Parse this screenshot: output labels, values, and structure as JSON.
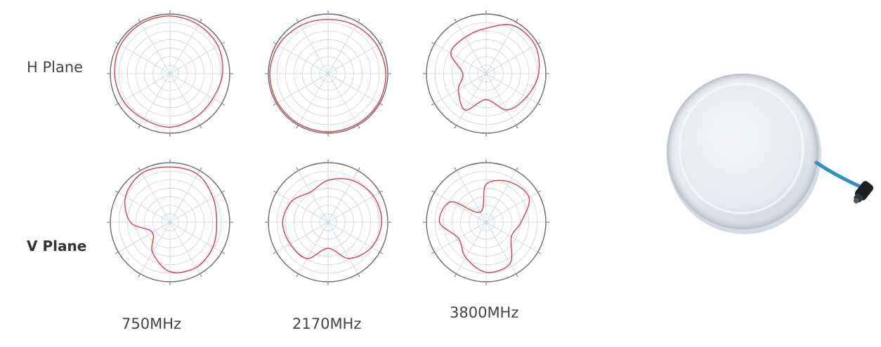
{
  "labels": {
    "h_plane": "H Plane",
    "v_plane": "V Plane"
  },
  "frequencies": [
    "750MHz",
    "2170MHz",
    "3800MHz"
  ],
  "colors": {
    "pattern": "#e03a4a",
    "grid": "#c8d3dc",
    "outer_ring": "#6b6b6b",
    "antenna_body": "#eceef3",
    "cable": "#2e90c8"
  },
  "chart_data": [
    {
      "type": "polar",
      "plane": "H",
      "frequency": "750MHz",
      "angles_deg": [
        0,
        30,
        60,
        90,
        120,
        150,
        180,
        210,
        240,
        270,
        300,
        330
      ],
      "values_norm": [
        0.99,
        0.97,
        0.95,
        0.9,
        0.85,
        0.87,
        0.92,
        0.9,
        0.93,
        0.95,
        0.98,
        0.99
      ]
    },
    {
      "type": "polar",
      "plane": "H",
      "frequency": "2170MHz",
      "angles_deg": [
        0,
        30,
        60,
        90,
        120,
        150,
        180,
        210,
        240,
        270,
        300,
        330
      ],
      "values_norm": [
        0.93,
        0.95,
        0.97,
        0.99,
        1.0,
        1.0,
        1.0,
        1.0,
        1.0,
        1.0,
        0.98,
        0.95
      ]
    },
    {
      "type": "polar",
      "plane": "H",
      "frequency": "3800MHz",
      "angles_deg": [
        0,
        30,
        60,
        90,
        120,
        150,
        180,
        210,
        240,
        270,
        300,
        330
      ],
      "values_norm": [
        0.78,
        0.95,
        0.97,
        0.9,
        0.8,
        0.72,
        0.45,
        0.72,
        0.55,
        0.4,
        0.7,
        0.72
      ]
    },
    {
      "type": "polar",
      "plane": "V",
      "frequency": "750MHz",
      "angles_deg": [
        0,
        30,
        60,
        90,
        120,
        150,
        180,
        210,
        240,
        270,
        300,
        330
      ],
      "values_norm": [
        0.95,
        0.95,
        0.85,
        0.8,
        0.85,
        0.9,
        0.85,
        0.6,
        0.35,
        0.68,
        0.88,
        0.97
      ]
    },
    {
      "type": "polar",
      "plane": "V",
      "frequency": "2170MHz",
      "angles_deg": [
        0,
        30,
        60,
        90,
        120,
        150,
        180,
        210,
        240,
        270,
        300,
        330
      ],
      "values_norm": [
        0.72,
        0.83,
        0.9,
        0.92,
        0.86,
        0.72,
        0.45,
        0.72,
        0.75,
        0.78,
        0.72,
        0.6
      ]
    },
    {
      "type": "polar",
      "plane": "V",
      "frequency": "3800MHz",
      "angles_deg": [
        0,
        30,
        60,
        90,
        120,
        150,
        180,
        210,
        240,
        270,
        300,
        330
      ],
      "values_norm": [
        0.65,
        0.8,
        0.85,
        0.6,
        0.5,
        0.82,
        0.86,
        0.7,
        0.55,
        0.8,
        0.7,
        0.2
      ]
    }
  ]
}
